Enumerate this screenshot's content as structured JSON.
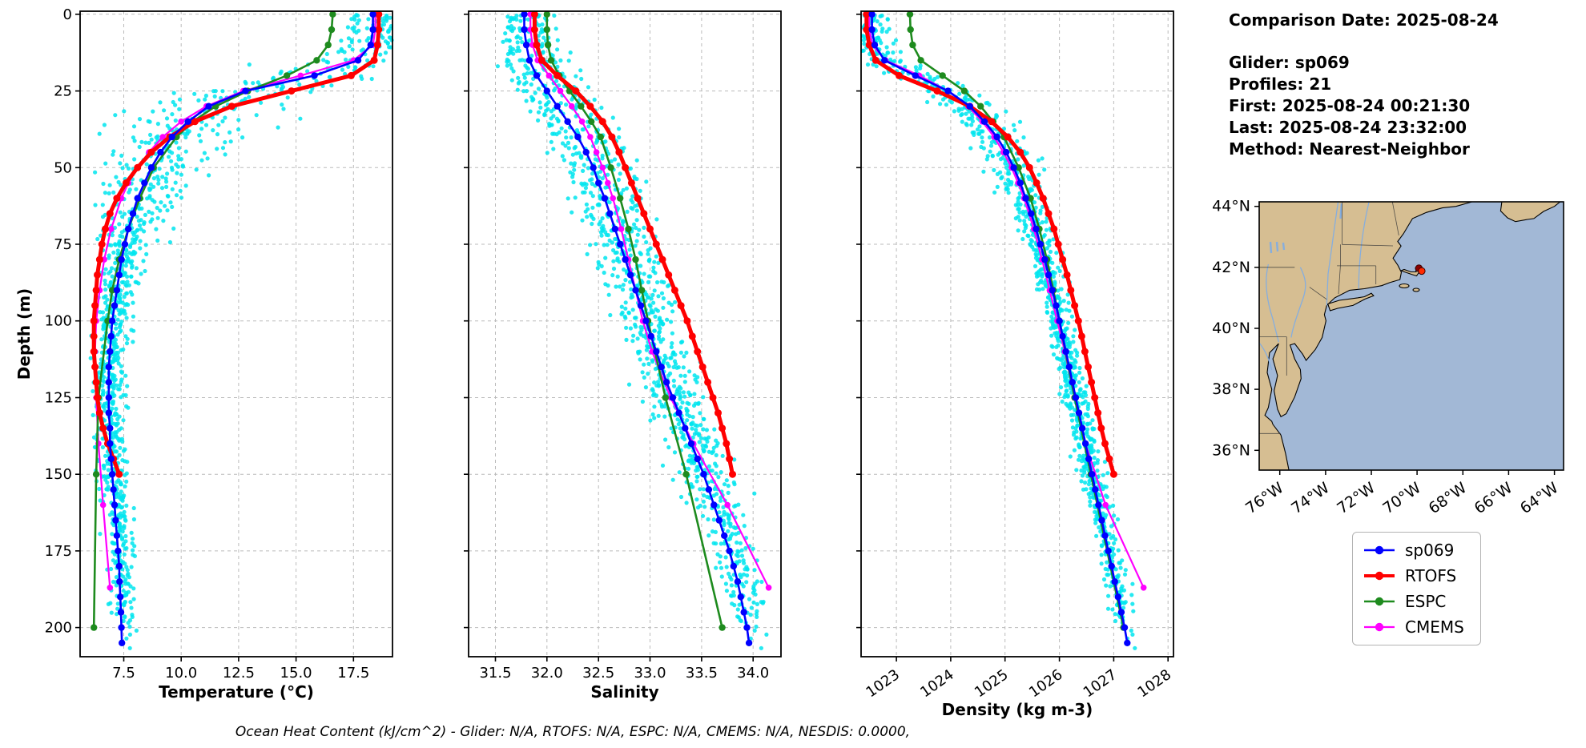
{
  "info_panel": {
    "heading": "Comparison Date: 2025-08-24",
    "lines": [
      "Glider: sp069",
      "Profiles: 21",
      "First: 2025-08-24 00:21:30",
      "Last: 2025-08-24 23:32:00",
      "Method: Nearest-Neighbor"
    ]
  },
  "footer": {
    "text": "Ocean Heat Content (kJ/cm^2) - Glider: N/A,  RTOFS: N/A,  ESPC: N/A,  CMEMS: N/A,  NESDIS: 0.0000,"
  },
  "legend": {
    "entries": [
      {
        "label": "sp069",
        "color": "#0000ff",
        "linewidth": 2.6
      },
      {
        "label": "RTOFS",
        "color": "#ff0000",
        "linewidth": 4
      },
      {
        "label": "ESPC",
        "color": "#1e8b1e",
        "linewidth": 2.6
      },
      {
        "label": "CMEMS",
        "color": "#ff00ff",
        "linewidth": 2.2
      }
    ]
  },
  "map": {
    "lat_tick_labels": [
      "44°N",
      "42°N",
      "40°N",
      "38°N",
      "36°N"
    ],
    "lat_tick_values": [
      44,
      42,
      40,
      38,
      36
    ],
    "lon_tick_labels": [
      "76°W",
      "74°W",
      "72°W",
      "70°W",
      "68°W",
      "66°W",
      "64°W"
    ],
    "lon_tick_values": [
      -76,
      -74,
      -72,
      -70,
      -68,
      -66,
      -64
    ],
    "extent": {
      "lon_min": -76.9,
      "lon_max": -63.6,
      "lat_min": 35.35,
      "lat_max": 44.15
    },
    "land_color": "#d6be92",
    "ocean_color": "#a2b8d6",
    "glider_marker": {
      "lon": -69.85,
      "lat": 41.92,
      "color": "#ff2a00",
      "edge": "#3a0000"
    }
  },
  "chart_data": {
    "type": "line",
    "description": "Vertical ocean profiles: glider sp069 vs RTOFS, ESPC and CMEMS models; cyan dots are raw glider observations from 21 profiles; depth axis inverted (0 m at top).",
    "ylabel": "Depth (m)",
    "ylim": [
      0,
      210
    ],
    "y_inverted": true,
    "grid": true,
    "ytick_values": [
      0,
      25,
      50,
      75,
      100,
      125,
      150,
      175,
      200
    ],
    "ytick_labels": [
      "0",
      "25",
      "50",
      "75",
      "100",
      "125",
      "150",
      "175",
      "200"
    ],
    "panels": [
      {
        "key": "temperature",
        "xlabel": "Temperature (°C)",
        "xlim": [
          5.6,
          19.2
        ],
        "xtick_values": [
          7.5,
          10.0,
          12.5,
          15.0,
          17.5
        ],
        "xtick_labels": [
          "7.5",
          "10.0",
          "12.5",
          "15.0",
          "17.5"
        ],
        "rotate_xticks": false
      },
      {
        "key": "salinity",
        "xlabel": "Salinity",
        "xlim": [
          31.24,
          34.27
        ],
        "xtick_values": [
          31.5,
          32.0,
          32.5,
          33.0,
          33.5,
          34.0
        ],
        "xtick_labels": [
          "31.5",
          "32.0",
          "32.5",
          "33.0",
          "33.5",
          "34.0"
        ],
        "rotate_xticks": false
      },
      {
        "key": "density",
        "xlabel": "Density (kg m-3)",
        "xlim": [
          1022.35,
          1028.1
        ],
        "xtick_values": [
          1023,
          1024,
          1025,
          1026,
          1027,
          1028
        ],
        "xtick_labels": [
          "1023",
          "1024",
          "1025",
          "1026",
          "1027",
          "1028"
        ],
        "rotate_xticks": true
      }
    ],
    "series": [
      {
        "name": "sp069",
        "color": "#0000ff",
        "linewidth": 2.6,
        "markersize": 4.2,
        "depth": [
          0,
          5,
          10,
          15,
          20,
          25,
          30,
          35,
          40,
          45,
          50,
          55,
          60,
          65,
          70,
          75,
          80,
          85,
          90,
          95,
          100,
          105,
          110,
          115,
          120,
          125,
          130,
          135,
          140,
          145,
          150,
          155,
          160,
          165,
          170,
          175,
          180,
          185,
          190,
          195,
          200,
          205
        ],
        "temperature": [
          18.35,
          18.35,
          18.25,
          17.7,
          15.8,
          12.8,
          11.2,
          10.3,
          9.6,
          9.1,
          8.7,
          8.4,
          8.1,
          7.9,
          7.7,
          7.55,
          7.4,
          7.3,
          7.2,
          7.1,
          7.0,
          6.95,
          6.9,
          6.85,
          6.85,
          6.85,
          6.85,
          6.9,
          6.9,
          6.95,
          7.0,
          7.05,
          7.1,
          7.15,
          7.2,
          7.25,
          7.3,
          7.32,
          7.35,
          7.38,
          7.4,
          7.42
        ],
        "salinity": [
          31.78,
          31.78,
          31.8,
          31.83,
          31.9,
          32.0,
          32.1,
          32.2,
          32.3,
          32.38,
          32.45,
          32.5,
          32.56,
          32.61,
          32.66,
          32.71,
          32.76,
          32.81,
          32.86,
          32.91,
          32.96,
          33.01,
          33.06,
          33.11,
          33.16,
          33.22,
          33.28,
          33.34,
          33.4,
          33.46,
          33.52,
          33.57,
          33.62,
          33.67,
          33.72,
          33.77,
          33.81,
          33.85,
          33.88,
          33.91,
          33.94,
          33.96
        ],
        "density": [
          1022.55,
          1022.55,
          1022.6,
          1022.78,
          1023.35,
          1023.95,
          1024.35,
          1024.62,
          1024.85,
          1025.02,
          1025.16,
          1025.28,
          1025.38,
          1025.48,
          1025.57,
          1025.65,
          1025.73,
          1025.8,
          1025.87,
          1025.94,
          1026.0,
          1026.06,
          1026.12,
          1026.18,
          1026.24,
          1026.3,
          1026.36,
          1026.42,
          1026.48,
          1026.54,
          1026.6,
          1026.66,
          1026.72,
          1026.78,
          1026.84,
          1026.9,
          1026.96,
          1027.02,
          1027.08,
          1027.14,
          1027.2,
          1027.25
        ]
      },
      {
        "name": "RTOFS",
        "color": "#ff0000",
        "linewidth": 5,
        "markersize": 4.5,
        "depth": [
          0,
          5,
          10,
          15,
          20,
          25,
          30,
          35,
          40,
          45,
          50,
          55,
          60,
          65,
          70,
          75,
          80,
          85,
          90,
          95,
          100,
          105,
          110,
          115,
          120,
          125,
          130,
          135,
          140,
          145,
          150
        ],
        "temperature": [
          18.6,
          18.6,
          18.55,
          18.4,
          17.4,
          14.8,
          12.2,
          10.6,
          9.5,
          8.7,
          8.1,
          7.6,
          7.2,
          6.9,
          6.7,
          6.55,
          6.45,
          6.35,
          6.3,
          6.25,
          6.2,
          6.2,
          6.2,
          6.25,
          6.3,
          6.35,
          6.45,
          6.6,
          6.8,
          7.05,
          7.3
        ],
        "salinity": [
          31.88,
          31.88,
          31.9,
          31.95,
          32.1,
          32.28,
          32.42,
          32.54,
          32.63,
          32.7,
          32.76,
          32.82,
          32.88,
          32.94,
          33.0,
          33.06,
          33.12,
          33.18,
          33.24,
          33.3,
          33.36,
          33.41,
          33.46,
          33.51,
          33.56,
          33.61,
          33.66,
          33.7,
          33.74,
          33.77,
          33.8
        ],
        "density": [
          1022.45,
          1022.45,
          1022.5,
          1022.62,
          1023.05,
          1023.75,
          1024.35,
          1024.75,
          1025.05,
          1025.28,
          1025.45,
          1025.58,
          1025.7,
          1025.8,
          1025.9,
          1025.98,
          1026.06,
          1026.14,
          1026.21,
          1026.28,
          1026.35,
          1026.41,
          1026.47,
          1026.53,
          1026.59,
          1026.65,
          1026.71,
          1026.77,
          1026.84,
          1026.92,
          1027.0
        ]
      },
      {
        "name": "ESPC",
        "color": "#1e8b1e",
        "linewidth": 2.6,
        "markersize": 4.2,
        "depth": [
          0,
          5,
          10,
          15,
          20,
          25,
          30,
          35,
          40,
          50,
          60,
          70,
          80,
          90,
          100,
          125,
          150,
          200
        ],
        "temperature": [
          16.6,
          16.55,
          16.4,
          15.9,
          14.6,
          12.9,
          11.5,
          10.5,
          9.8,
          8.8,
          8.2,
          7.7,
          7.3,
          7.0,
          6.8,
          6.4,
          6.3,
          6.2
        ],
        "salinity": [
          32.0,
          32.0,
          32.01,
          32.04,
          32.12,
          32.22,
          32.33,
          32.43,
          32.52,
          32.62,
          32.71,
          32.79,
          32.86,
          32.92,
          32.98,
          33.15,
          33.35,
          33.7
        ],
        "density": [
          1023.25,
          1023.26,
          1023.3,
          1023.45,
          1023.85,
          1024.25,
          1024.55,
          1024.78,
          1024.98,
          1025.25,
          1025.47,
          1025.63,
          1025.77,
          1025.89,
          1026.0,
          1026.28,
          1026.58,
          1027.18
        ]
      },
      {
        "name": "CMEMS",
        "color": "#ff00ff",
        "linewidth": 2.2,
        "markersize": 3.8,
        "depth": [
          0,
          5,
          10,
          15,
          20,
          25,
          30,
          35,
          40,
          45,
          50,
          55,
          60,
          70,
          80,
          90,
          100,
          110,
          125,
          140,
          160,
          187
        ],
        "temperature": [
          18.45,
          18.45,
          18.35,
          17.5,
          15.2,
          12.7,
          11.1,
          10.0,
          9.2,
          8.6,
          8.1,
          7.7,
          7.4,
          6.95,
          6.65,
          6.45,
          6.3,
          6.25,
          6.3,
          6.4,
          6.6,
          6.9
        ],
        "salinity": [
          31.84,
          31.84,
          31.86,
          31.91,
          32.02,
          32.13,
          32.24,
          32.34,
          32.42,
          32.48,
          32.54,
          32.59,
          32.64,
          32.72,
          32.79,
          32.86,
          32.93,
          33.02,
          33.2,
          33.42,
          33.75,
          34.15
        ],
        "density": [
          1022.5,
          1022.5,
          1022.56,
          1022.8,
          1023.42,
          1023.95,
          1024.32,
          1024.58,
          1024.8,
          1024.97,
          1025.12,
          1025.24,
          1025.35,
          1025.53,
          1025.68,
          1025.82,
          1025.96,
          1026.1,
          1026.28,
          1026.48,
          1026.85,
          1027.55
        ]
      }
    ],
    "scatter": {
      "label": "glider raw observations",
      "color": "#00e5ee",
      "profile_count": 21,
      "marker_radius": 2.6
    }
  }
}
